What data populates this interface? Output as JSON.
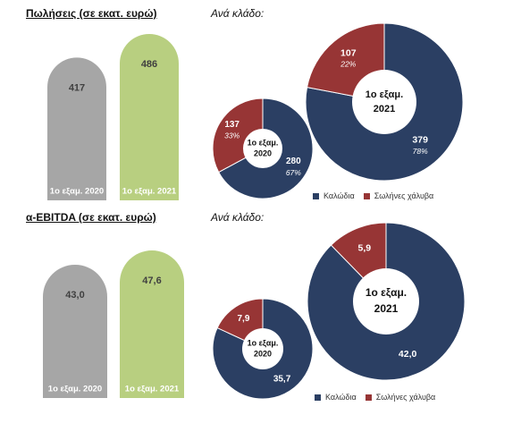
{
  "titles": {
    "sales": "Πωλήσεις (σε εκατ. ευρώ)",
    "ebitda": "α-EBITDA (σε εκατ. ευρώ)",
    "branch_sales": "Ανά κλάδο:",
    "branch_ebitda": "Ανά κλάδο:"
  },
  "colors": {
    "bar_2020": "#a6a6a6",
    "bar_2021": "#b8cf80",
    "cables": "#2b3f63",
    "steel_pipes": "#973535"
  },
  "legend": {
    "cables": "Καλώδια",
    "steel_pipes": "Σωλήνες χάλυβα"
  },
  "chart_data": [
    {
      "type": "bar",
      "title": "Πωλήσεις (σε εκατ. ευρώ)",
      "categories": [
        "1ο εξαμ. 2020",
        "1ο εξαμ. 2021"
      ],
      "values": [
        417,
        486
      ],
      "value_labels": [
        "417",
        "486"
      ]
    },
    {
      "type": "pie",
      "subtype": "donut",
      "center_label": [
        "1ο εξαμ.",
        "2020"
      ],
      "labels": [
        "Καλώδια",
        "Σωλήνες χάλυβα"
      ],
      "values": [
        280,
        137
      ],
      "value_labels": [
        "280",
        "137"
      ],
      "percent_labels": [
        "67%",
        "33%"
      ]
    },
    {
      "type": "pie",
      "subtype": "donut",
      "center_label": [
        "1ο εξαμ.",
        "2021"
      ],
      "labels": [
        "Καλώδια",
        "Σωλήνες χάλυβα"
      ],
      "values": [
        379,
        107
      ],
      "value_labels": [
        "379",
        "107"
      ],
      "percent_labels": [
        "78%",
        "22%"
      ]
    },
    {
      "type": "bar",
      "title": "α-EBITDA (σε εκατ. ευρώ)",
      "categories": [
        "1ο εξαμ. 2020",
        "1ο εξαμ. 2021"
      ],
      "values": [
        43.0,
        47.6
      ],
      "value_labels": [
        "43,0",
        "47,6"
      ]
    },
    {
      "type": "pie",
      "subtype": "donut",
      "center_label": [
        "1ο εξαμ.",
        "2020"
      ],
      "labels": [
        "Καλώδια",
        "Σωλήνες χάλυβα"
      ],
      "values": [
        35.7,
        7.9
      ],
      "value_labels": [
        "35,7",
        "7,9"
      ],
      "percent_labels": [
        "",
        ""
      ]
    },
    {
      "type": "pie",
      "subtype": "donut",
      "center_label": [
        "1ο εξαμ.",
        "2021"
      ],
      "labels": [
        "Καλώδια",
        "Σωλήνες χάλυβα"
      ],
      "values": [
        42.0,
        5.9
      ],
      "value_labels": [
        "42,0",
        "5,9"
      ],
      "percent_labels": [
        "",
        ""
      ]
    }
  ]
}
